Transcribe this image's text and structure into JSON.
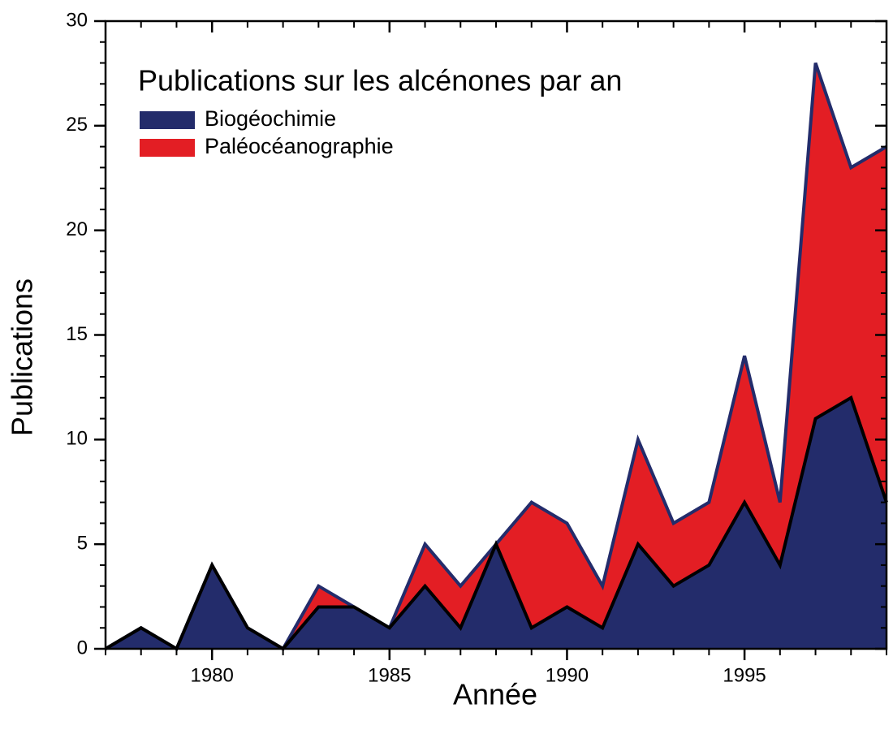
{
  "chart_data": {
    "type": "stacked_area",
    "legend_title": "Publications sur les alcénones par an",
    "xlabel": "Année",
    "ylabel": "Publications",
    "x": [
      1977,
      1978,
      1979,
      1980,
      1981,
      1982,
      1983,
      1984,
      1985,
      1986,
      1987,
      1988,
      1989,
      1990,
      1991,
      1992,
      1993,
      1994,
      1995,
      1996,
      1997,
      1998,
      1999
    ],
    "series": [
      {
        "name": "Biogéochimie",
        "color": "#232c6b",
        "line_color": "#000000",
        "values": [
          0,
          1,
          0,
          4,
          1,
          0,
          2,
          2,
          1,
          3,
          1,
          5,
          1,
          2,
          1,
          5,
          3,
          4,
          7,
          4,
          11,
          12,
          7
        ]
      },
      {
        "name": "Paléocéanographie",
        "color": "#e31e24",
        "line_color": "#232c6b",
        "values": [
          0,
          0,
          0,
          0,
          0,
          0,
          1,
          0,
          0,
          2,
          2,
          0,
          6,
          4,
          2,
          5,
          3,
          3,
          7,
          3,
          17,
          11,
          17
        ]
      }
    ],
    "xlim": [
      1977,
      1999
    ],
    "xticks": [
      1980,
      1985,
      1990,
      1995
    ],
    "ylim": [
      0,
      30
    ],
    "yticks": [
      0,
      5,
      10,
      15,
      20,
      25,
      30
    ],
    "legend": "upper left"
  }
}
